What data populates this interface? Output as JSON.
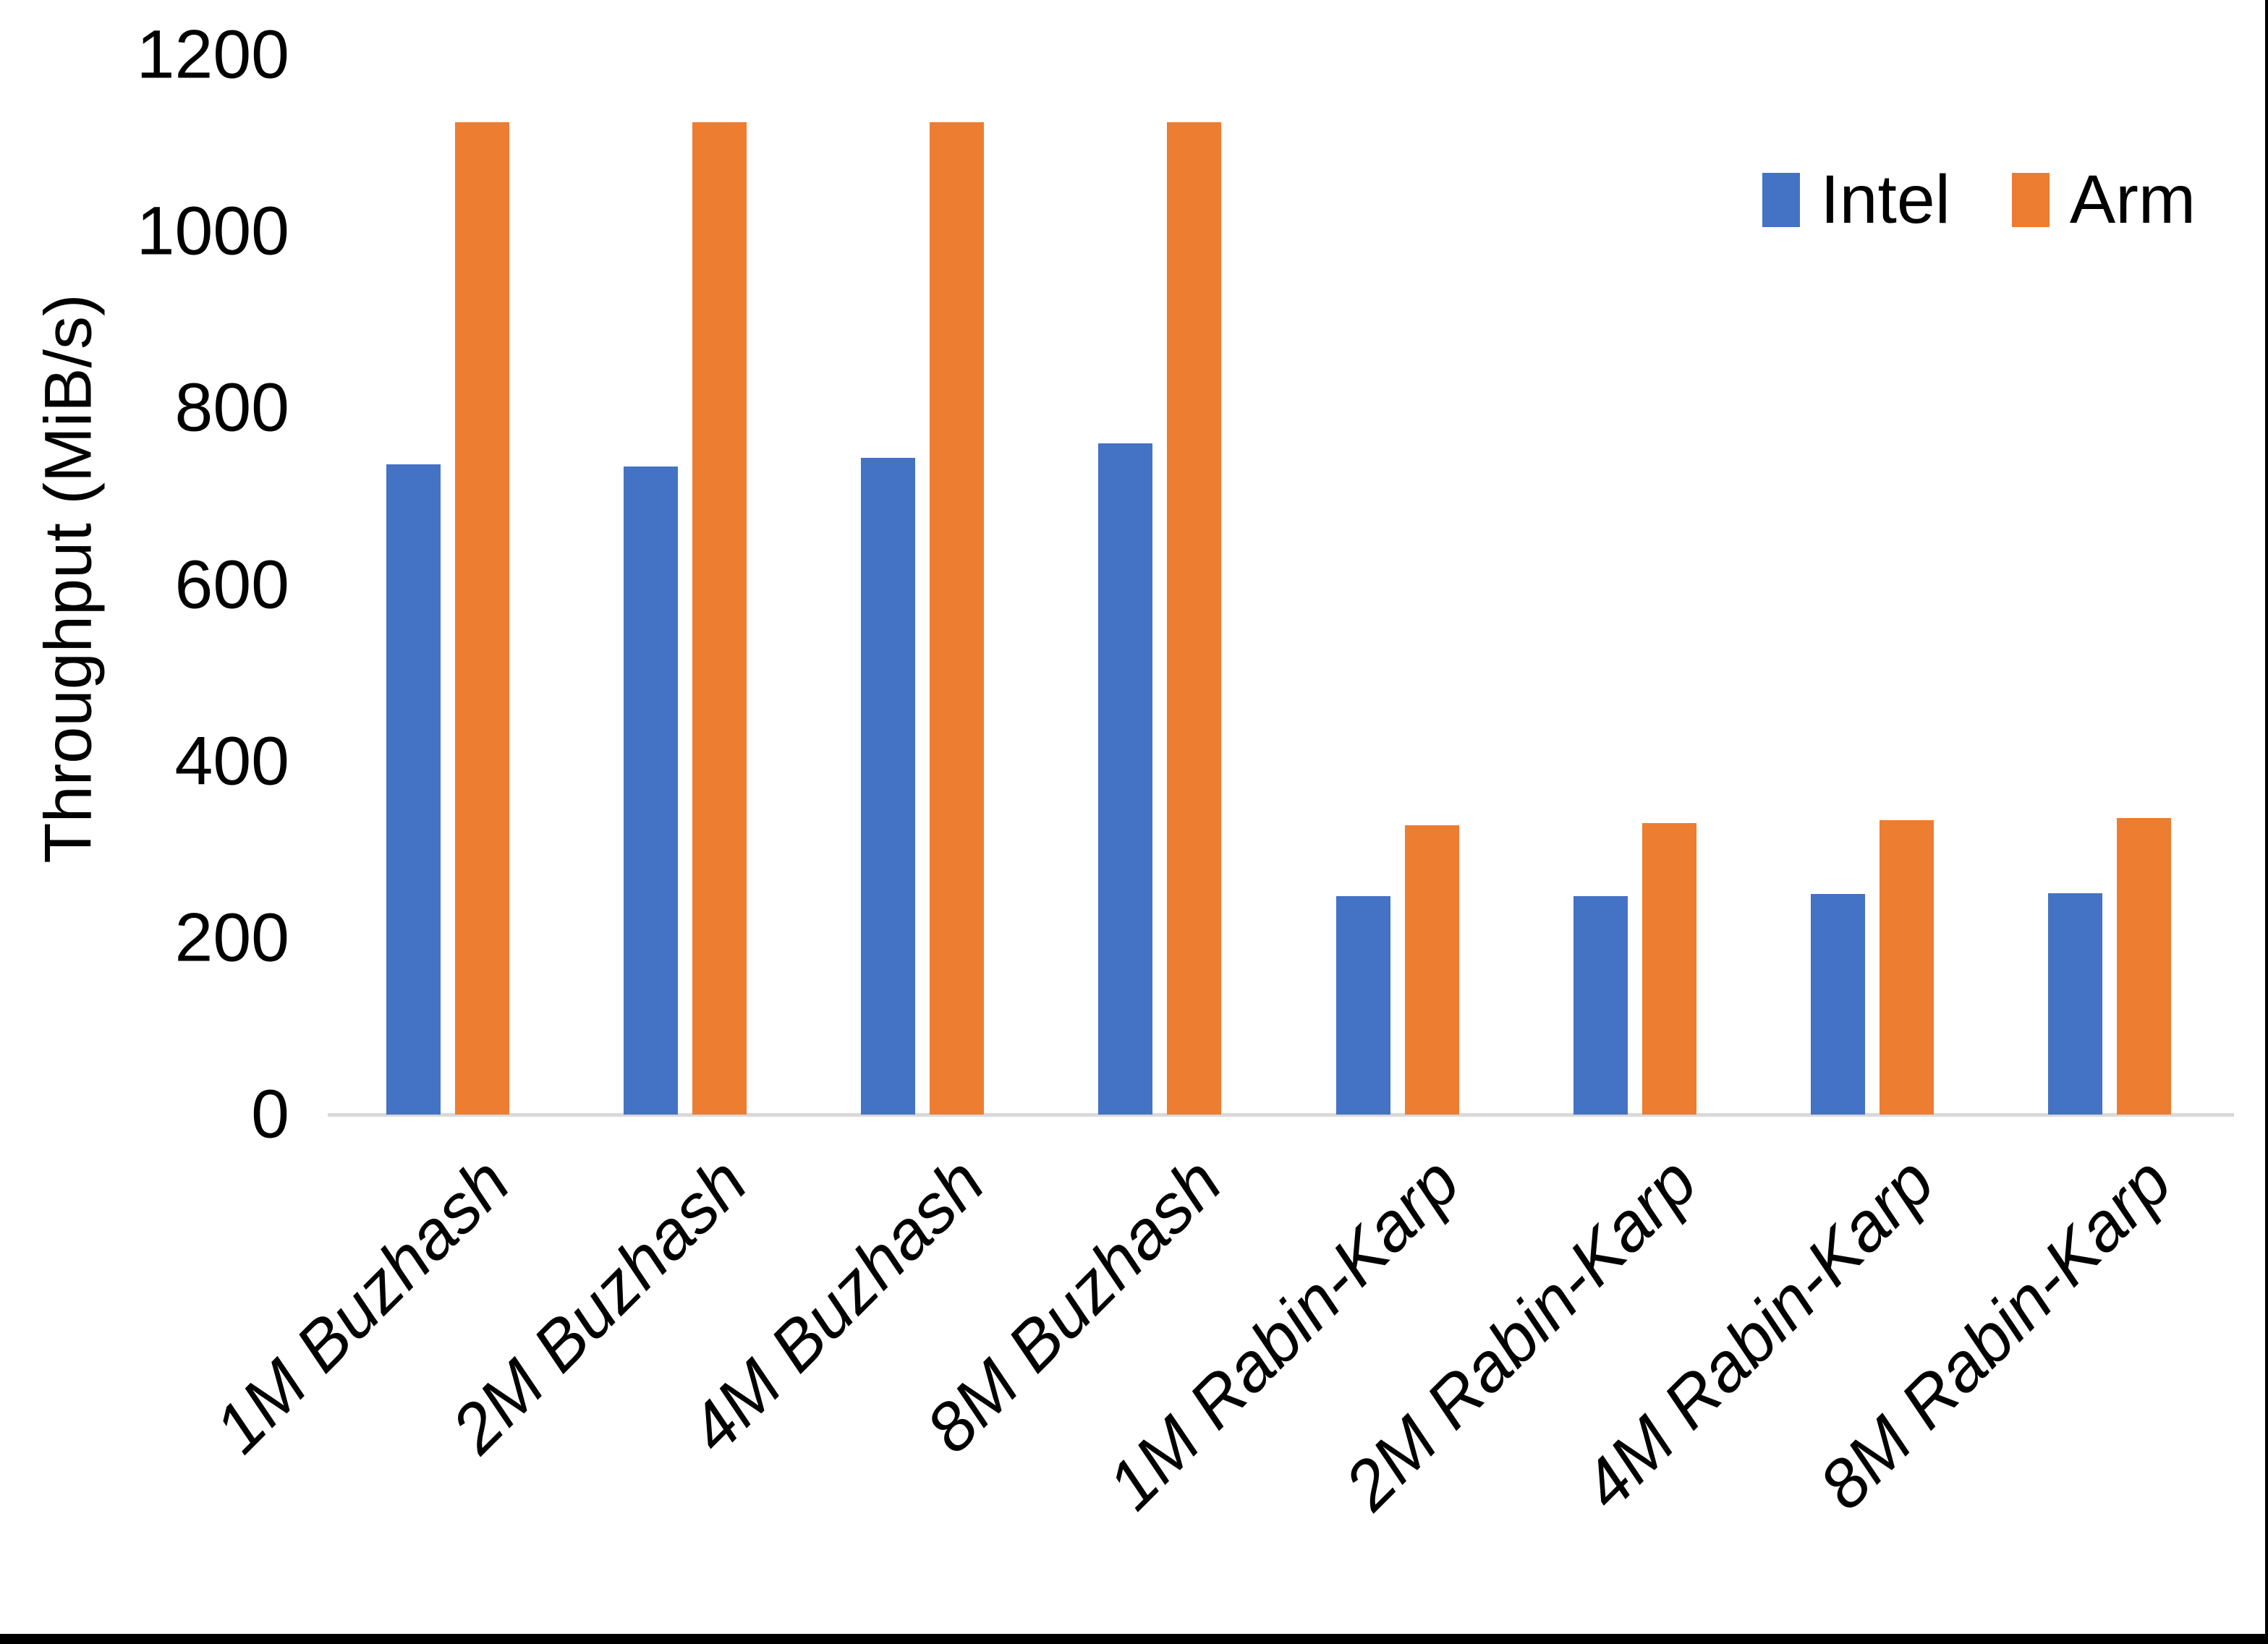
{
  "chart_data": {
    "type": "bar",
    "title": "",
    "xlabel": "",
    "ylabel": "Throughput (MiB/s)",
    "categories": [
      "1M Buzhash",
      "2M Buzhash",
      "4M Buzhash",
      "8M Buzhash",
      "1M Rabin-Karp",
      "2M Rabin-Karp",
      "4M Rabin-Karp",
      "8M Rabin-Karp"
    ],
    "series": [
      {
        "name": "Intel",
        "color": "#4472C4",
        "values": [
          736,
          734,
          744,
          760,
          247,
          247,
          250,
          251
        ]
      },
      {
        "name": "Arm",
        "color": "#ED7D31",
        "values": [
          1124,
          1124,
          1124,
          1124,
          328,
          330,
          333,
          336
        ]
      }
    ],
    "ylim": [
      0,
      1200
    ],
    "yticks": [
      0,
      200,
      400,
      600,
      800,
      1000,
      1200
    ],
    "grid": false,
    "legend_position": "top-right",
    "axis_line_color": "#D9D9D9"
  },
  "legend": {
    "items": [
      {
        "label": "Intel",
        "color": "#4472C4"
      },
      {
        "label": "Arm",
        "color": "#ED7D31"
      }
    ]
  }
}
